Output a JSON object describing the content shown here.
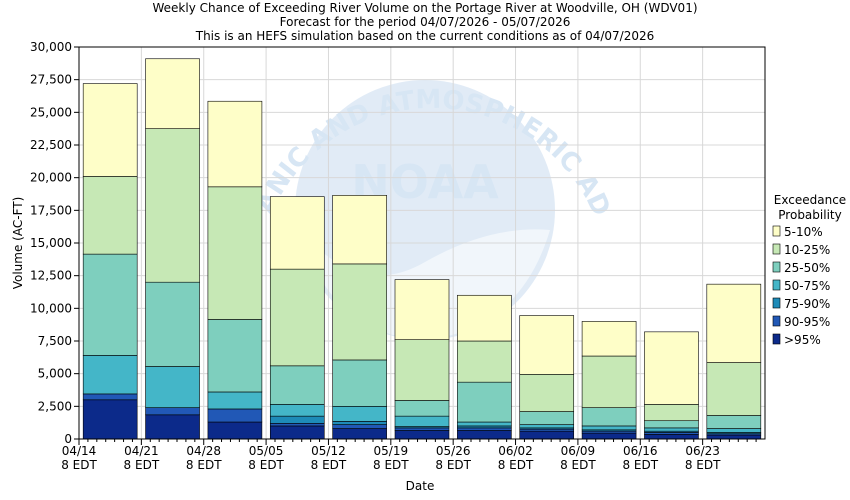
{
  "chart_data": {
    "type": "bar",
    "stacked": true,
    "title": [
      "Weekly Chance of Exceeding River Volume on the Portage River at Woodville, OH (WDV01)",
      "Forecast for the period 04/07/2026 - 05/07/2026",
      "This is an HEFS simulation based on the current conditions as of 04/07/2026"
    ],
    "xlabel": "Date",
    "ylabel": "Volume (AC-FT)",
    "ylim": [
      0,
      30000
    ],
    "yticks": [
      "0",
      "2,500",
      "5,000",
      "7,500",
      "10,000",
      "12,500",
      "15,000",
      "17,500",
      "20,000",
      "22,500",
      "25,000",
      "27,500",
      "30,000"
    ],
    "xticks": [
      {
        "date": "04/14",
        "time": "8 EDT"
      },
      {
        "date": "04/21",
        "time": "8 EDT"
      },
      {
        "date": "04/28",
        "time": "8 EDT"
      },
      {
        "date": "05/05",
        "time": "8 EDT"
      },
      {
        "date": "05/12",
        "time": "8 EDT"
      },
      {
        "date": "05/19",
        "time": "8 EDT"
      },
      {
        "date": "05/26",
        "time": "8 EDT"
      },
      {
        "date": "06/02",
        "time": "8 EDT"
      },
      {
        "date": "06/09",
        "time": "8 EDT"
      },
      {
        "date": "06/16",
        "time": "8 EDT"
      },
      {
        "date": "06/23",
        "time": "8 EDT"
      }
    ],
    "grid": true,
    "legend": {
      "title": [
        "Exceedance",
        "Probability"
      ],
      "position": "right"
    },
    "series": [
      {
        "name": ">95%",
        "color": "#0c2a8a",
        "values": [
          3000,
          1850,
          1300,
          1000,
          800,
          650,
          650,
          600,
          450,
          350,
          300
        ]
      },
      {
        "name": "90-95%",
        "color": "#2158b6",
        "values": [
          450,
          550,
          1000,
          200,
          300,
          200,
          200,
          150,
          150,
          150,
          100
        ]
      },
      {
        "name": "75-90%",
        "color": "#1e8bb8",
        "values": [
          0,
          0,
          0,
          550,
          250,
          100,
          150,
          100,
          100,
          100,
          100
        ]
      },
      {
        "name": "50-75%",
        "color": "#44b6c8",
        "values": [
          2950,
          3150,
          1300,
          900,
          1150,
          800,
          300,
          250,
          300,
          250,
          300
        ]
      },
      {
        "name": "25-50%",
        "color": "#7ecfbe",
        "values": [
          7750,
          6450,
          5550,
          2950,
          3550,
          1200,
          3050,
          1000,
          1400,
          550,
          1000
        ]
      },
      {
        "name": "10-25%",
        "color": "#c6e8b5",
        "values": [
          5950,
          11750,
          10150,
          7400,
          7350,
          4650,
          3150,
          2850,
          3950,
          1250,
          4050
        ]
      },
      {
        "name": "5-10%",
        "color": "#fefec8",
        "values": [
          7100,
          5350,
          6550,
          5550,
          5250,
          4600,
          3500,
          4500,
          2650,
          5550,
          6000
        ]
      }
    ],
    "watermark": {
      "logo": "NOAA",
      "arc_text": "NATIONAL OCEANIC AND ATMOSPHERIC ADMINISTRATION"
    }
  }
}
